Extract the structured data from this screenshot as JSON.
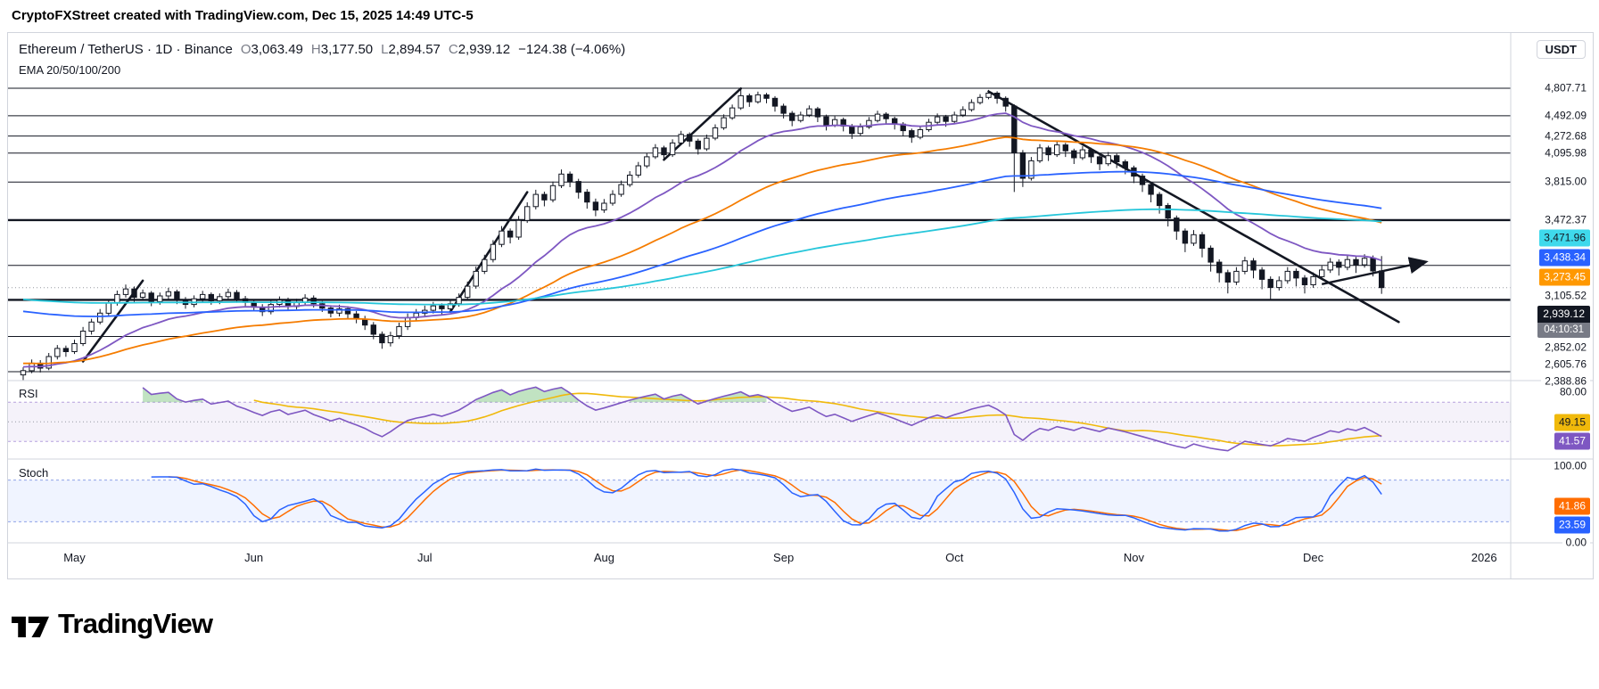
{
  "ui": {
    "top_title": "CryptoFXStreet created with TradingView.com, Dec 15, 2025 14:49 UTC-5",
    "symbol_title": "Ethereum / TetherUS · 1D · Binance",
    "ohlc": {
      "o_key": "O",
      "o": "3,063.49",
      "h_key": "H",
      "h": "3,177.50",
      "l_key": "L",
      "l": "2,894.57",
      "c_key": "C",
      "c": "2,939.12",
      "change": "−124.38 (−4.06%)"
    },
    "ema_legend": "EMA 20/50/100/200",
    "rsi_legend": "RSI",
    "stoch_legend": "Stoch",
    "axis_currency": "USDT",
    "logo_text": "TradingView"
  },
  "chart_data": {
    "type": "candlestick",
    "title": "Ethereum / TetherUS · 1D · Binance",
    "interval": "1D",
    "quote_currency": "USDT",
    "visible_price_range": [
      2330,
      4950
    ],
    "x_axis": {
      "labels": [
        "May",
        "Jun",
        "Jul",
        "Aug",
        "Sep",
        "Oct",
        "Nov",
        "Dec",
        "2026"
      ],
      "bar_index": [
        6,
        27,
        47,
        68,
        89,
        109,
        130,
        151,
        171
      ]
    },
    "candles_ohlc": [
      [
        2370,
        2415,
        2340,
        2395
      ],
      [
        2395,
        2462,
        2380,
        2440
      ],
      [
        2440,
        2458,
        2384,
        2410
      ],
      [
        2410,
        2502,
        2398,
        2480
      ],
      [
        2480,
        2551,
        2462,
        2530
      ],
      [
        2530,
        2548,
        2478,
        2510
      ],
      [
        2510,
        2585,
        2496,
        2560
      ],
      [
        2560,
        2668,
        2545,
        2640
      ],
      [
        2640,
        2722,
        2618,
        2700
      ],
      [
        2700,
        2788,
        2685,
        2760
      ],
      [
        2760,
        2856,
        2742,
        2830
      ],
      [
        2830,
        2918,
        2812,
        2890
      ],
      [
        2890,
        2962,
        2868,
        2930
      ],
      [
        2930,
        2948,
        2838,
        2870
      ],
      [
        2870,
        2926,
        2846,
        2900
      ],
      [
        2900,
        2915,
        2808,
        2840
      ],
      [
        2840,
        2904,
        2818,
        2880
      ],
      [
        2880,
        2938,
        2858,
        2910
      ],
      [
        2910,
        2925,
        2822,
        2850
      ],
      [
        2850,
        2872,
        2790,
        2820
      ],
      [
        2820,
        2884,
        2800,
        2860
      ],
      [
        2860,
        2916,
        2838,
        2890
      ],
      [
        2890,
        2905,
        2818,
        2845
      ],
      [
        2845,
        2898,
        2822,
        2875
      ],
      [
        2875,
        2932,
        2855,
        2905
      ],
      [
        2905,
        2922,
        2832,
        2860
      ],
      [
        2860,
        2880,
        2806,
        2835
      ],
      [
        2835,
        2852,
        2772,
        2800
      ],
      [
        2800,
        2822,
        2740,
        2770
      ],
      [
        2770,
        2846,
        2752,
        2820
      ],
      [
        2820,
        2876,
        2798,
        2850
      ],
      [
        2850,
        2868,
        2778,
        2805
      ],
      [
        2805,
        2860,
        2785,
        2835
      ],
      [
        2835,
        2892,
        2812,
        2865
      ],
      [
        2865,
        2884,
        2798,
        2825
      ],
      [
        2825,
        2844,
        2768,
        2795
      ],
      [
        2795,
        2815,
        2732,
        2760
      ],
      [
        2760,
        2818,
        2738,
        2790
      ],
      [
        2790,
        2808,
        2726,
        2755
      ],
      [
        2755,
        2775,
        2692,
        2720
      ],
      [
        2720,
        2742,
        2648,
        2680
      ],
      [
        2680,
        2700,
        2588,
        2620
      ],
      [
        2620,
        2638,
        2528,
        2565
      ],
      [
        2565,
        2636,
        2542,
        2610
      ],
      [
        2610,
        2696,
        2590,
        2670
      ],
      [
        2670,
        2758,
        2648,
        2730
      ],
      [
        2730,
        2788,
        2705,
        2760
      ],
      [
        2760,
        2812,
        2734,
        2780
      ],
      [
        2780,
        2838,
        2758,
        2810
      ],
      [
        2810,
        2828,
        2752,
        2790
      ],
      [
        2790,
        2852,
        2770,
        2825
      ],
      [
        2825,
        2898,
        2804,
        2870
      ],
      [
        2870,
        2984,
        2852,
        2950
      ],
      [
        2950,
        3096,
        2932,
        3060
      ],
      [
        3060,
        3188,
        3040,
        3150
      ],
      [
        3150,
        3305,
        3128,
        3270
      ],
      [
        3270,
        3422,
        3248,
        3380
      ],
      [
        3380,
        3402,
        3278,
        3330
      ],
      [
        3330,
        3508,
        3308,
        3470
      ],
      [
        3470,
        3628,
        3448,
        3590
      ],
      [
        3590,
        3742,
        3565,
        3700
      ],
      [
        3700,
        3725,
        3592,
        3650
      ],
      [
        3650,
        3818,
        3628,
        3780
      ],
      [
        3780,
        3935,
        3758,
        3890
      ],
      [
        3890,
        3915,
        3766,
        3820
      ],
      [
        3820,
        3845,
        3662,
        3720
      ],
      [
        3720,
        3748,
        3572,
        3630
      ],
      [
        3630,
        3662,
        3506,
        3560
      ],
      [
        3560,
        3658,
        3535,
        3620
      ],
      [
        3620,
        3738,
        3598,
        3700
      ],
      [
        3700,
        3828,
        3678,
        3790
      ],
      [
        3790,
        3918,
        3768,
        3880
      ],
      [
        3880,
        4008,
        3855,
        3970
      ],
      [
        3970,
        4098,
        3948,
        4060
      ],
      [
        4060,
        4188,
        4038,
        4150
      ],
      [
        4150,
        4172,
        4022,
        4080
      ],
      [
        4080,
        4238,
        4058,
        4200
      ],
      [
        4200,
        4328,
        4178,
        4290
      ],
      [
        4290,
        4312,
        4162,
        4220
      ],
      [
        4220,
        4245,
        4082,
        4140
      ],
      [
        4140,
        4288,
        4118,
        4250
      ],
      [
        4250,
        4398,
        4228,
        4360
      ],
      [
        4360,
        4508,
        4338,
        4470
      ],
      [
        4470,
        4618,
        4448,
        4580
      ],
      [
        4580,
        4808,
        4558,
        4720
      ],
      [
        4720,
        4745,
        4592,
        4650
      ],
      [
        4650,
        4768,
        4628,
        4730
      ],
      [
        4730,
        4752,
        4632,
        4690
      ],
      [
        4690,
        4715,
        4538,
        4600
      ],
      [
        4600,
        4628,
        4462,
        4520
      ],
      [
        4520,
        4545,
        4378,
        4440
      ],
      [
        4440,
        4538,
        4418,
        4500
      ],
      [
        4500,
        4608,
        4478,
        4570
      ],
      [
        4570,
        4592,
        4422,
        4480
      ],
      [
        4480,
        4505,
        4332,
        4390
      ],
      [
        4390,
        4488,
        4368,
        4450
      ],
      [
        4450,
        4472,
        4322,
        4380
      ],
      [
        4380,
        4402,
        4242,
        4300
      ],
      [
        4300,
        4408,
        4278,
        4370
      ],
      [
        4370,
        4478,
        4348,
        4440
      ],
      [
        4440,
        4548,
        4418,
        4510
      ],
      [
        4510,
        4532,
        4402,
        4460
      ],
      [
        4460,
        4482,
        4342,
        4400
      ],
      [
        4400,
        4422,
        4272,
        4330
      ],
      [
        4330,
        4352,
        4202,
        4260
      ],
      [
        4260,
        4378,
        4238,
        4340
      ],
      [
        4340,
        4458,
        4318,
        4420
      ],
      [
        4420,
        4518,
        4398,
        4480
      ],
      [
        4480,
        4502,
        4372,
        4430
      ],
      [
        4430,
        4538,
        4408,
        4500
      ],
      [
        4500,
        4598,
        4478,
        4560
      ],
      [
        4560,
        4678,
        4538,
        4640
      ],
      [
        4640,
        4738,
        4618,
        4700
      ],
      [
        4700,
        4788,
        4678,
        4750
      ],
      [
        4750,
        4772,
        4628,
        4690
      ],
      [
        4690,
        4712,
        4538,
        4600
      ],
      [
        4600,
        4620,
        3722,
        4100
      ],
      [
        4100,
        4128,
        3768,
        3850
      ],
      [
        3850,
        4058,
        3828,
        4020
      ],
      [
        4020,
        4188,
        3998,
        4150
      ],
      [
        4150,
        4172,
        4018,
        4080
      ],
      [
        4080,
        4218,
        4058,
        4180
      ],
      [
        4180,
        4202,
        4058,
        4120
      ],
      [
        4120,
        4142,
        3988,
        4050
      ],
      [
        4050,
        4168,
        4028,
        4130
      ],
      [
        4130,
        4152,
        3998,
        4060
      ],
      [
        4060,
        4082,
        3928,
        3990
      ],
      [
        3990,
        4108,
        3968,
        4070
      ],
      [
        4070,
        4092,
        3948,
        4010
      ],
      [
        4010,
        4032,
        3888,
        3950
      ],
      [
        3950,
        3972,
        3805,
        3870
      ],
      [
        3870,
        3895,
        3722,
        3790
      ],
      [
        3790,
        3812,
        3628,
        3700
      ],
      [
        3700,
        3722,
        3528,
        3600
      ],
      [
        3600,
        3622,
        3418,
        3490
      ],
      [
        3490,
        3512,
        3308,
        3380
      ],
      [
        3380,
        3402,
        3208,
        3280
      ],
      [
        3280,
        3388,
        3258,
        3350
      ],
      [
        3350,
        3372,
        3168,
        3240
      ],
      [
        3240,
        3262,
        3058,
        3130
      ],
      [
        3130,
        3152,
        2978,
        3050
      ],
      [
        3050,
        3072,
        2898,
        2980
      ],
      [
        2980,
        3092,
        2958,
        3060
      ],
      [
        3060,
        3172,
        3038,
        3140
      ],
      [
        3140,
        3162,
        3008,
        3070
      ],
      [
        3070,
        3092,
        2928,
        3000
      ],
      [
        3000,
        3022,
        2852,
        2940
      ],
      [
        2940,
        3022,
        2918,
        2990
      ],
      [
        2990,
        3092,
        2968,
        3060
      ],
      [
        3060,
        3082,
        2948,
        3010
      ],
      [
        3010,
        3032,
        2898,
        2960
      ],
      [
        2960,
        3052,
        2938,
        3020
      ],
      [
        3020,
        3102,
        2998,
        3070
      ],
      [
        3070,
        3162,
        3048,
        3130
      ],
      [
        3130,
        3152,
        3028,
        3090
      ],
      [
        3090,
        3182,
        3068,
        3150
      ],
      [
        3150,
        3172,
        3048,
        3110
      ],
      [
        3110,
        3192,
        3088,
        3160
      ],
      [
        3160,
        3182,
        3022,
        3063
      ],
      [
        3063.49,
        3177.5,
        2894.57,
        2939.12
      ]
    ],
    "emas": [
      {
        "period": 20,
        "seed": 2420,
        "color": "#7e57c2"
      },
      {
        "period": 50,
        "seed": 2440,
        "color": "#f57c00"
      },
      {
        "period": 100,
        "seed": 2780,
        "color": "#2962ff"
      },
      {
        "period": 200,
        "seed": 2860,
        "color": "#26c6da"
      }
    ],
    "ema_badges": [
      {
        "price": 3471.96,
        "label": "3,471.96",
        "bg": "#3fd9ec",
        "fg": "#131722"
      },
      {
        "price": 3438.34,
        "label": "3,438.34",
        "bg": "#2962ff",
        "fg": "#ffffff"
      },
      {
        "price": 3273.45,
        "label": "3,273.45",
        "bg": "#ff9800",
        "fg": "#ffffff"
      }
    ],
    "levels": [
      {
        "price": 4807.71,
        "label": "4,807.71",
        "bold": false
      },
      {
        "price": 4492.09,
        "label": "4,492.09",
        "bold": false
      },
      {
        "price": 4272.68,
        "label": "4,272.68",
        "bold": false
      },
      {
        "price": 4095.98,
        "label": "4,095.98",
        "bold": false
      },
      {
        "price": 3815.0,
        "label": "3,815.00",
        "bold": false
      },
      {
        "price": 3472.37,
        "label": "3,472.37",
        "bold": true
      },
      {
        "price": 3105.52,
        "label": "3,105.52",
        "bold": false
      },
      {
        "price": 2852.02,
        "label": "2,852.02",
        "bold": true
      },
      {
        "price": 2605.76,
        "label": "2,605.76",
        "bold": false
      },
      {
        "price": 2388.86,
        "label": "2,388.86",
        "bold": false
      }
    ],
    "last_price": {
      "price": 2939.12,
      "label": "2,939.12",
      "countdown": "04:10:31",
      "bg": "#131722",
      "countdown_bg": "#787b86"
    },
    "trendlines": [
      {
        "i1": 7,
        "p1": 2450,
        "i2": 14,
        "p2": 2990
      },
      {
        "i1": 50,
        "p1": 2770,
        "i2": 59,
        "p2": 3720
      },
      {
        "i1": 75,
        "p1": 4030,
        "i2": 84,
        "p2": 4805
      },
      {
        "i1": 113,
        "p1": 4770,
        "i2": 161,
        "p2": 2700
      }
    ],
    "breakout_arrow": {
      "i1": 152,
      "p1": 2965,
      "i2": 164,
      "p2": 3130
    },
    "rsi": {
      "period": 14,
      "ma_period": 14,
      "line_color": "#7e57c2",
      "ma_color": "#f0b90b",
      "upper": 70,
      "lower": 30,
      "middle": 50,
      "scale_label": "80.00",
      "line_value": 41.57,
      "ma_value": 49.15,
      "badges": [
        {
          "value": 49.15,
          "label": "49.15",
          "bg": "#f0b90b",
          "fg": "#131722"
        },
        {
          "value": 41.57,
          "label": "41.57",
          "bg": "#7e57c2",
          "fg": "#ffffff"
        }
      ]
    },
    "stoch": {
      "k_period": 14,
      "k_smooth": 3,
      "d_period": 3,
      "k_color": "#2962ff",
      "d_color": "#ff6d00",
      "upper": 80,
      "lower": 20,
      "scale_top": "100.00",
      "scale_bottom": "0.00",
      "k_value": 23.59,
      "d_value": 41.86,
      "badges": [
        {
          "value": 41.86,
          "label": "41.86",
          "bg": "#ff6d00",
          "fg": "#ffffff"
        },
        {
          "value": 23.59,
          "label": "23.59",
          "bg": "#2962ff",
          "fg": "#ffffff"
        }
      ]
    }
  }
}
